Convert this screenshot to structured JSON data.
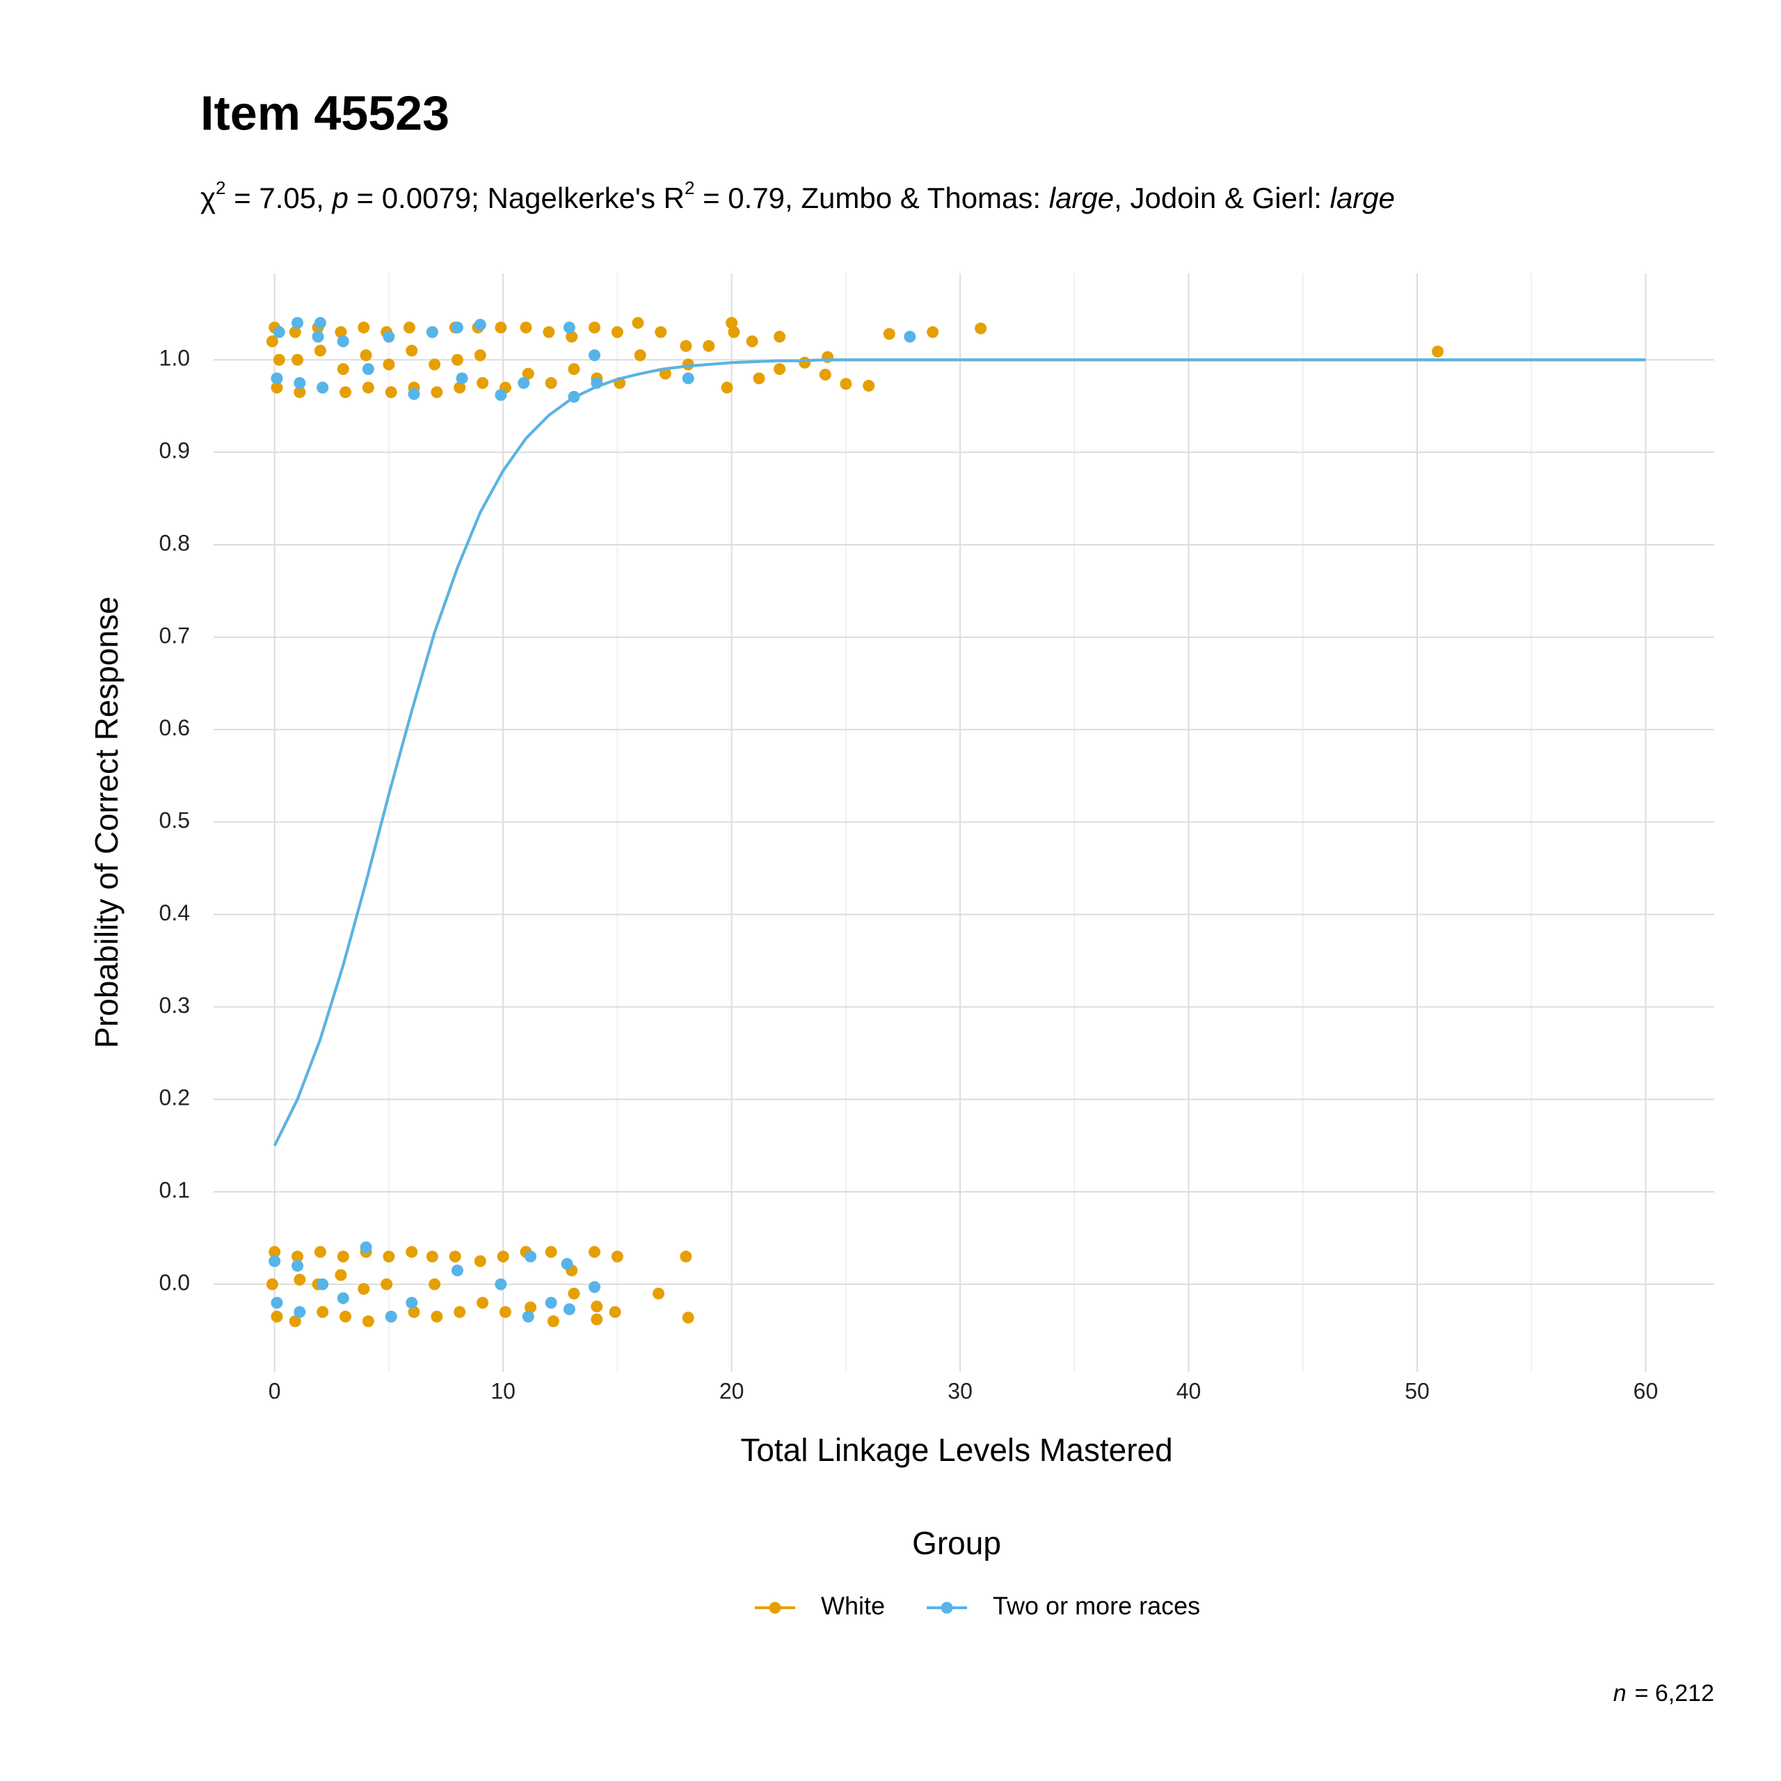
{
  "chart_data": {
    "type": "scatter",
    "title": "Item 45523",
    "subtitle_parts": [
      "χ",
      "2",
      " = 7.05, ",
      "p",
      " = 0.0079; Nagelkerke's R",
      "2",
      " = 0.79, Zumbo & Thomas: ",
      "large",
      ", Jodoin & Gierl: ",
      "large"
    ],
    "x_label": "Total Linkage Levels Mastered",
    "y_label": "Probability of Correct Response",
    "legend_title": "Group",
    "legend_position": "bottom",
    "caption_label": "n",
    "caption_value": "= 6,212",
    "grid": true,
    "xlim": [
      -2.67,
      63.0
    ],
    "ylim": [
      -0.0948,
      1.0935
    ],
    "xticks": [
      0,
      10,
      20,
      30,
      40,
      50,
      60
    ],
    "xminorticks": [
      5,
      15,
      25,
      35,
      45,
      55
    ],
    "yticks": [
      {
        "value": 0,
        "label": "0.0"
      },
      0.1,
      0.2,
      0.3,
      0.4,
      0.5,
      0.6,
      0.7,
      0.8,
      0.9,
      {
        "value": 1,
        "label": "1.0"
      }
    ],
    "series": [
      {
        "name": "White",
        "color": "#e69f00",
        "x": [
          0.0,
          0.1,
          0.2,
          -0.1,
          0.9,
          1.1,
          1.0,
          1.9,
          2.1,
          2.0,
          2.9,
          3.1,
          3.0,
          3.9,
          4.1,
          4.0,
          4.9,
          5.1,
          5.0,
          5.9,
          6.1,
          6.0,
          6.9,
          7.1,
          7.0,
          7.9,
          8.1,
          8.0,
          8.9,
          9.1,
          9.0,
          9.9,
          10.1,
          11.0,
          11.1,
          12.0,
          12.1,
          13.0,
          13.1,
          14.0,
          14.1,
          15.0,
          15.1,
          15.9,
          16.0,
          16.9,
          17.1,
          18.0,
          18.1,
          19.0,
          20.0,
          19.8,
          20.1,
          20.9,
          21.2,
          22.1,
          22.1,
          23.2,
          24.2,
          24.1,
          25.0,
          26.0,
          26.9,
          28.8,
          30.9,
          50.9,
          0.0,
          0.1,
          -0.1,
          1.0,
          0.9,
          1.1,
          2.0,
          2.1,
          1.9,
          3.0,
          3.1,
          2.9,
          4.0,
          4.1,
          3.9,
          5.0,
          5.1,
          4.9,
          6.0,
          6.1,
          6.9,
          7.1,
          7.0,
          7.9,
          8.1,
          9.0,
          9.1,
          10.0,
          10.1,
          11.0,
          11.2,
          12.1,
          12.2,
          13.0,
          13.1,
          14.0,
          14.1,
          14.1,
          15.0,
          14.9,
          16.8,
          18.0,
          18.1
        ],
        "values": [
          1.035,
          0.97,
          1.0,
          1.02,
          1.03,
          0.965,
          1.0,
          1.035,
          0.97,
          1.01,
          1.03,
          0.965,
          0.99,
          1.035,
          0.97,
          1.005,
          1.03,
          0.965,
          0.995,
          1.035,
          0.97,
          1.01,
          1.03,
          0.965,
          0.995,
          1.035,
          0.97,
          1.0,
          1.035,
          0.975,
          1.005,
          1.035,
          0.97,
          1.035,
          0.985,
          1.03,
          0.975,
          1.025,
          0.99,
          1.035,
          0.98,
          1.03,
          0.975,
          1.04,
          1.005,
          1.03,
          0.985,
          1.015,
          0.995,
          1.015,
          1.04,
          0.97,
          1.03,
          1.02,
          0.98,
          1.025,
          0.99,
          0.997,
          1.003,
          0.984,
          0.974,
          0.972,
          1.028,
          1.03,
          1.034,
          1.009,
          0.035,
          -0.035,
          0.0,
          0.03,
          -0.04,
          0.005,
          0.035,
          -0.03,
          0.0,
          0.03,
          -0.035,
          0.01,
          0.035,
          -0.04,
          -0.005,
          0.03,
          -0.035,
          0.0,
          0.035,
          -0.03,
          0.03,
          -0.035,
          0.0,
          0.03,
          -0.03,
          0.025,
          -0.02,
          0.03,
          -0.03,
          0.035,
          -0.025,
          0.035,
          -0.04,
          0.015,
          -0.01,
          0.035,
          -0.038,
          -0.024,
          0.03,
          -0.03,
          -0.01,
          0.03,
          -0.036
        ],
        "curve": {
          "x": [
            0,
            1,
            2,
            3,
            4,
            5,
            6,
            7,
            8,
            9,
            10,
            11,
            12,
            13,
            14,
            15,
            16,
            17,
            18,
            19,
            20,
            21,
            22,
            23,
            24,
            25,
            30,
            40,
            50,
            60
          ],
          "values": [
            0.15,
            0.2,
            0.265,
            0.345,
            0.435,
            0.53,
            0.62,
            0.705,
            0.775,
            0.835,
            0.88,
            0.915,
            0.94,
            0.958,
            0.97,
            0.979,
            0.985,
            0.99,
            0.993,
            0.995,
            0.997,
            0.998,
            0.999,
            0.999,
            1.0,
            1.0,
            1.0,
            1.0,
            1.0,
            1.0
          ]
        }
      },
      {
        "name": "Two or more races",
        "color": "#56b4e9",
        "x": [
          0.1,
          0.2,
          1.0,
          1.1,
          2.0,
          1.9,
          2.1,
          3.0,
          4.1,
          5.0,
          6.1,
          6.9,
          8.0,
          8.2,
          9.0,
          9.9,
          10.9,
          12.9,
          13.1,
          14.0,
          14.1,
          18.1,
          27.8,
          0.0,
          0.1,
          1.0,
          1.1,
          2.1,
          3.0,
          4.0,
          5.1,
          6.0,
          8.0,
          9.9,
          11.1,
          11.2,
          12.1,
          12.8,
          12.9,
          14.0
        ],
        "values": [
          0.98,
          1.03,
          1.04,
          0.975,
          1.04,
          1.025,
          0.97,
          1.02,
          0.99,
          1.025,
          0.963,
          1.03,
          1.035,
          0.98,
          1.038,
          0.962,
          0.975,
          1.035,
          0.96,
          1.005,
          0.975,
          0.98,
          1.025,
          0.025,
          -0.02,
          0.02,
          -0.03,
          0.0,
          -0.015,
          0.04,
          -0.035,
          -0.02,
          0.015,
          0.0,
          -0.035,
          0.03,
          -0.02,
          0.022,
          -0.027,
          -0.003
        ],
        "curve": {
          "x": [
            0,
            1,
            2,
            3,
            4,
            5,
            6,
            7,
            8,
            9,
            10,
            11,
            12,
            13,
            14,
            15,
            16,
            17,
            18,
            19,
            20,
            21,
            22,
            23,
            24,
            25,
            30,
            40,
            50,
            60
          ],
          "values": [
            0.15,
            0.2,
            0.265,
            0.345,
            0.435,
            0.53,
            0.62,
            0.705,
            0.775,
            0.835,
            0.88,
            0.915,
            0.94,
            0.958,
            0.97,
            0.979,
            0.985,
            0.99,
            0.993,
            0.995,
            0.997,
            0.998,
            0.999,
            0.999,
            1.0,
            1.0,
            1.0,
            1.0,
            1.0,
            1.0
          ]
        }
      }
    ]
  }
}
